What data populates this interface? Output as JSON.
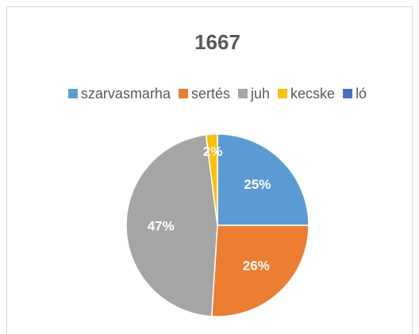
{
  "chart_data": {
    "type": "pie",
    "title": "1667",
    "categories": [
      "szarvasmarha",
      "sertés",
      "juh",
      "kecske",
      "ló"
    ],
    "values": [
      25,
      26,
      47,
      2,
      0
    ],
    "value_labels": [
      "25%",
      "26%",
      "47%",
      "2%",
      null
    ],
    "colors": [
      "#5b9bd5",
      "#ed7d31",
      "#a5a5a5",
      "#ffc000",
      "#4472c4"
    ],
    "legend": "top"
  }
}
